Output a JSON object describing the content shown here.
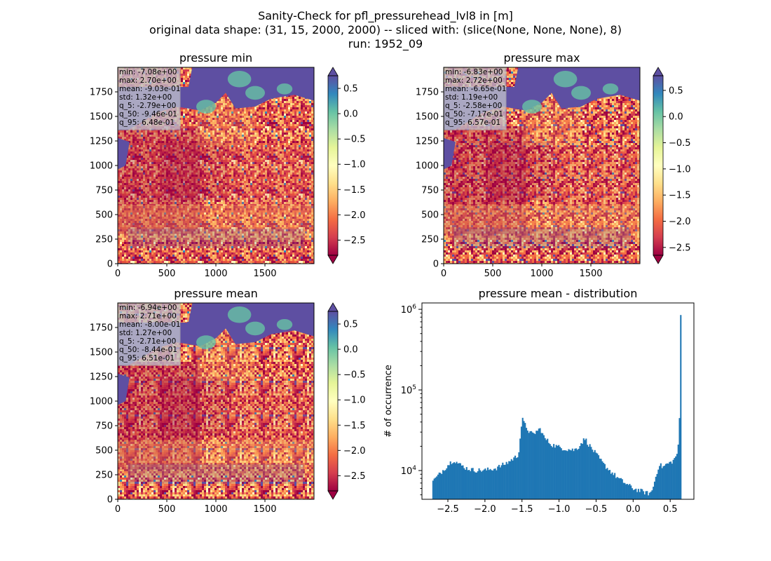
{
  "figure": {
    "title_lines": [
      "Sanity-Check for pfl_pressurehead_lvl8 in [m]",
      "original data shape: (31, 15, 2000, 2000) -- sliced with: (slice(None, None, None), 8)",
      "run: 1952_09"
    ]
  },
  "colors": {
    "ocean": "#5e4fa2",
    "colormap": "Spectral",
    "histogram_bar": "#1f77b4",
    "stats_box_bg": "#c0c0cc"
  },
  "chart_data": [
    {
      "type": "heatmap",
      "title": "pressure min",
      "xticks": [
        "0",
        "500",
        "1000",
        "1500"
      ],
      "yticks": [
        "0",
        "250",
        "500",
        "750",
        "1000",
        "1250",
        "1500",
        "1750"
      ],
      "xlim": [
        0,
        2000
      ],
      "ylim": [
        0,
        2000
      ],
      "colorbar": {
        "range": [
          -2.8,
          0.75
        ],
        "ticks": [
          "0.5",
          "0.0",
          "−0.5",
          "−1.0",
          "−1.5",
          "−2.0",
          "−2.5"
        ],
        "tick_values": [
          0.5,
          0.0,
          -0.5,
          -1.0,
          -1.5,
          -2.0,
          -2.5
        ],
        "extend": "both"
      },
      "stats": [
        "min: -7.08e+00",
        "max: 2.70e+00",
        "mean: -9.03e-01",
        "std: 1.32e+00",
        "q_5: -2.79e+00",
        "q_50: -9.46e-01",
        "q_95: 6.48e-01"
      ]
    },
    {
      "type": "heatmap",
      "title": "pressure max",
      "xticks": [
        "0",
        "500",
        "1000",
        "1500"
      ],
      "yticks": [
        "0",
        "250",
        "500",
        "750",
        "1000",
        "1250",
        "1500",
        "1750"
      ],
      "xlim": [
        0,
        2000
      ],
      "ylim": [
        0,
        2000
      ],
      "colorbar": {
        "range": [
          -2.65,
          0.78
        ],
        "ticks": [
          "0.5",
          "0.0",
          "−0.5",
          "−1.0",
          "−1.5",
          "−2.0",
          "−2.5"
        ],
        "tick_values": [
          0.5,
          0.0,
          -0.5,
          -1.0,
          -1.5,
          -2.0,
          -2.5
        ],
        "extend": "both"
      },
      "stats": [
        "min: -6.83e+00",
        "max: 2.72e+00",
        "mean: -6.65e-01",
        "std: 1.19e+00",
        "q_5: -2.58e+00",
        "q_50: -7.17e-01",
        "q_95: 6.57e-01"
      ]
    },
    {
      "type": "heatmap",
      "title": "pressure mean",
      "xticks": [
        "0",
        "500",
        "1000",
        "1500"
      ],
      "yticks": [
        "0",
        "250",
        "500",
        "750",
        "1000",
        "1250",
        "1500",
        "1750"
      ],
      "xlim": [
        0,
        2000
      ],
      "ylim": [
        0,
        2000
      ],
      "colorbar": {
        "range": [
          -2.8,
          0.75
        ],
        "ticks": [
          "0.5",
          "0.0",
          "−0.5",
          "−1.0",
          "−1.5",
          "−2.0",
          "−2.5"
        ],
        "tick_values": [
          0.5,
          0.0,
          -0.5,
          -1.0,
          -1.5,
          -2.0,
          -2.5
        ],
        "extend": "both"
      },
      "stats": [
        "min: -6.94e+00",
        "max: 2.71e+00",
        "mean: -8.00e-01",
        "std: 1.27e+00",
        "q_5: -2.71e+00",
        "q_50: -8.44e-01",
        "q_95: 6.51e-01"
      ]
    },
    {
      "type": "bar",
      "title": "pressure mean - distribution",
      "ylabel": "# of occurrence",
      "xlabel": "",
      "yscale": "log",
      "xlim": [
        -2.85,
        0.82
      ],
      "ylim": [
        4400,
        1200000
      ],
      "xticks": [
        "−2.5",
        "−2.0",
        "−1.5",
        "−1.0",
        "−0.5",
        "0.0",
        "0.5"
      ],
      "xtick_values": [
        -2.5,
        -2.0,
        -1.5,
        -1.0,
        -0.5,
        0.0,
        0.5
      ],
      "yticks": [
        "10^4",
        "10^5",
        "10^6"
      ],
      "ytick_values": [
        10000,
        100000,
        1000000
      ],
      "series": [
        {
          "x_start": -2.71,
          "x_end": 0.65,
          "control_points": [
            [
              -2.71,
              7300
            ],
            [
              -2.65,
              8300
            ],
            [
              -2.55,
              10500
            ],
            [
              -2.47,
              12500
            ],
            [
              -2.42,
              13600
            ],
            [
              -2.35,
              12000
            ],
            [
              -2.25,
              10700
            ],
            [
              -2.15,
              10100
            ],
            [
              -2.0,
              10100
            ],
            [
              -1.85,
              10700
            ],
            [
              -1.7,
              12500
            ],
            [
              -1.55,
              15500
            ],
            [
              -1.52,
              28000
            ],
            [
              -1.5,
              44000
            ],
            [
              -1.46,
              37000
            ],
            [
              -1.4,
              30000
            ],
            [
              -1.35,
              28000
            ],
            [
              -1.3,
              31000
            ],
            [
              -1.25,
              33000
            ],
            [
              -1.2,
              25500
            ],
            [
              -1.1,
              21000
            ],
            [
              -1.0,
              19500
            ],
            [
              -0.9,
              18500
            ],
            [
              -0.8,
              18000
            ],
            [
              -0.75,
              19000
            ],
            [
              -0.7,
              22000
            ],
            [
              -0.65,
              25000
            ],
            [
              -0.6,
              21000
            ],
            [
              -0.5,
              16000
            ],
            [
              -0.4,
              12000
            ],
            [
              -0.3,
              9700
            ],
            [
              -0.2,
              8000
            ],
            [
              -0.1,
              6900
            ],
            [
              0.0,
              6000
            ],
            [
              0.1,
              5600
            ],
            [
              0.15,
              5400
            ],
            [
              0.2,
              5200
            ],
            [
              0.25,
              5400
            ],
            [
              0.3,
              8000
            ],
            [
              0.35,
              12000
            ],
            [
              0.4,
              11000
            ],
            [
              0.45,
              12000
            ],
            [
              0.5,
              12500
            ],
            [
              0.55,
              13500
            ],
            [
              0.6,
              17000
            ],
            [
              0.62,
              25000
            ],
            [
              0.65,
              850000
            ]
          ]
        }
      ]
    }
  ]
}
